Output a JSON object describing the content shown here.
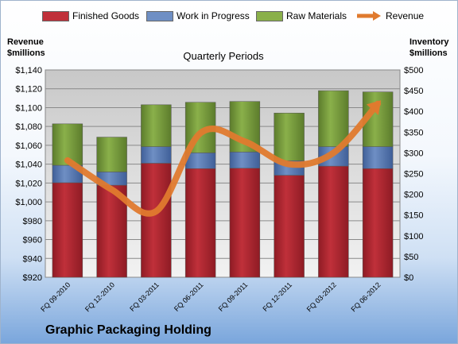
{
  "company": "Graphic Packaging Holding",
  "legend": {
    "finished": "Finished Goods",
    "wip": "Work in Progress",
    "raw": "Raw Materials",
    "revenue": "Revenue"
  },
  "left_axis_title": "Revenue\n$millions",
  "right_axis_title": "Inventory\n$millions",
  "colors": {
    "finished": "#c0303a",
    "wip": "#6f8fc4",
    "raw": "#8ab04a",
    "revenue": "#e07a2e"
  },
  "chart_data": {
    "type": "bar",
    "title": "Quarterly Periods",
    "categories": [
      "FQ 09-2010",
      "FQ 12-2010",
      "FQ 03-2011",
      "FQ 06-2011",
      "FQ 09-2011",
      "FQ 12-2011",
      "FQ 03-2012",
      "FQ 06-2012"
    ],
    "series": [
      {
        "name": "Finished Goods",
        "axis": "right",
        "stacked": true,
        "values": [
          228,
          222,
          275,
          262,
          263,
          246,
          268,
          262
        ]
      },
      {
        "name": "Work in Progress",
        "axis": "right",
        "stacked": true,
        "values": [
          42,
          32,
          40,
          38,
          39,
          35,
          47,
          53
        ]
      },
      {
        "name": "Raw Materials",
        "axis": "right",
        "stacked": true,
        "values": [
          100,
          84,
          101,
          122,
          122,
          115,
          135,
          132
        ]
      },
      {
        "name": "Revenue",
        "type": "line",
        "axis": "left",
        "values": [
          1044,
          1013,
          990,
          1073,
          1064,
          1040,
          1052,
          1104
        ]
      }
    ],
    "left_axis": {
      "min": 920,
      "max": 1140,
      "step": 20,
      "format": "currency-comma"
    },
    "right_axis": {
      "min": 0,
      "max": 500,
      "step": 50,
      "format": "currency"
    },
    "grid": true
  }
}
